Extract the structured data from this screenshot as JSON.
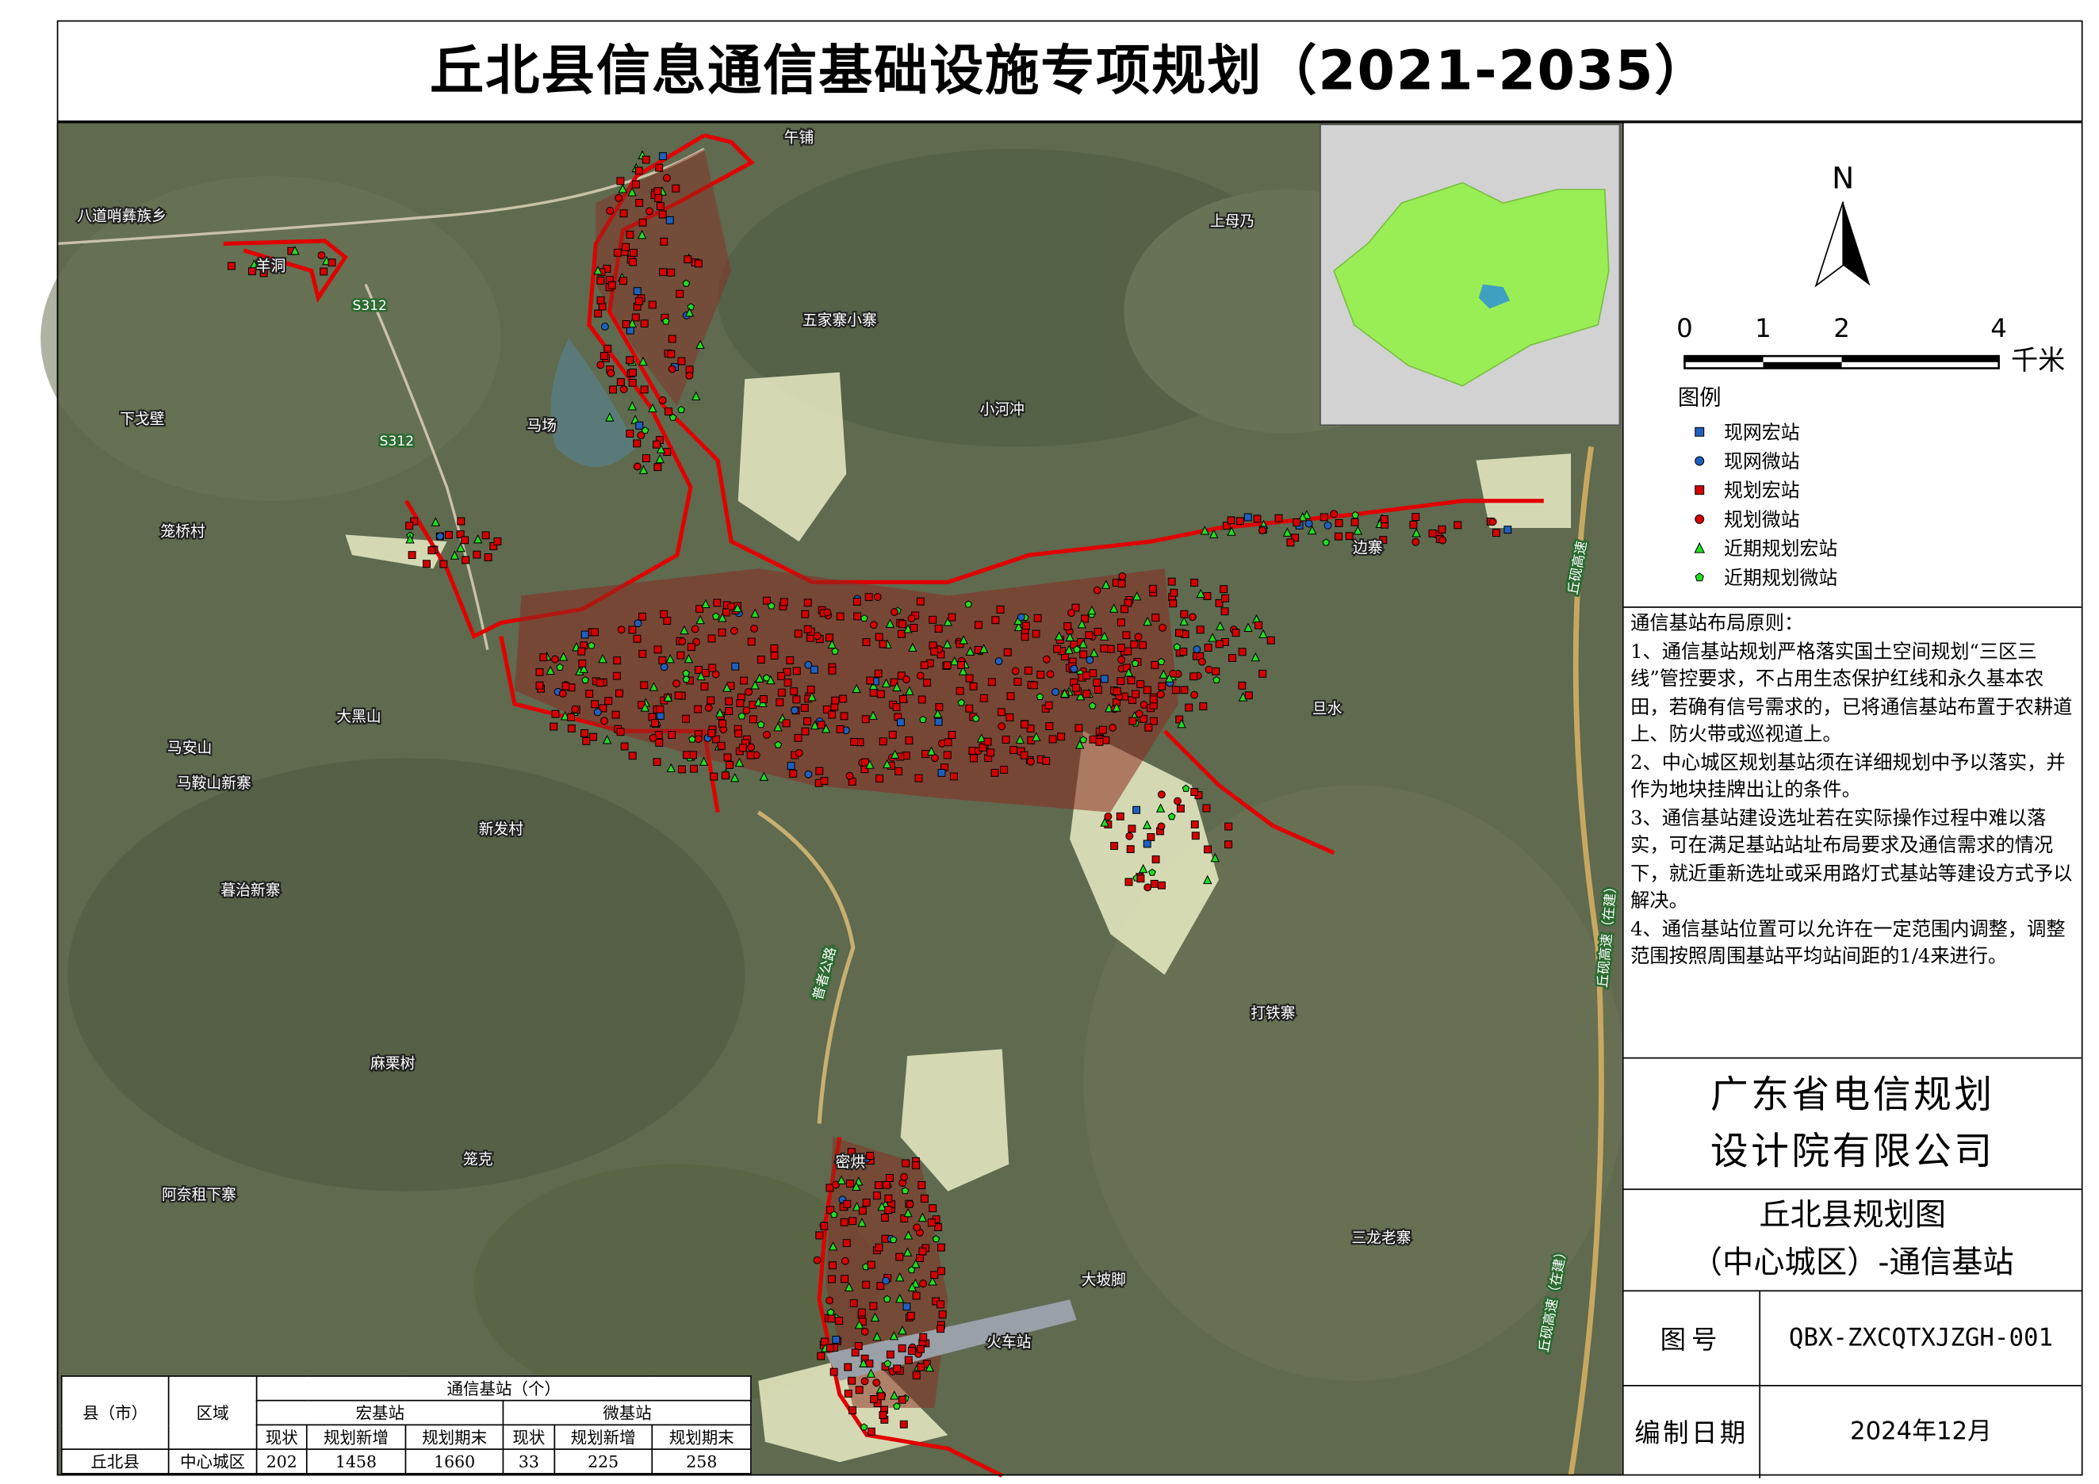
{
  "title": "丘北县信息通信基础设施专项规划（2021-2035）",
  "place_labels": [
    "午铺",
    "八道哨彝族乡",
    "羊洞",
    "上母乃",
    "五家寨小寨",
    "下戈壁",
    "马场",
    "小河冲",
    "笼桥村",
    "边寨",
    "大黑山",
    "马安山",
    "马鞍山新寨",
    "新发村",
    "旦水",
    "暮治新寨",
    "打铁寨",
    "麻栗树",
    "笼克",
    "密烘",
    "阿奈租下寨",
    "三龙老寨",
    "大坡脚",
    "火车站"
  ],
  "road_labels": [
    "S312",
    "S312",
    "普者公路",
    "丘砚高速",
    "丘砚高速（在建）",
    "丘砚高速（在建）"
  ],
  "north": "N",
  "scale_bar": {
    "labels": [
      "0",
      "1",
      "2",
      "4"
    ],
    "unit": "千米"
  },
  "legend": {
    "title": "图例",
    "items": [
      {
        "label": "现网宏站",
        "shape": "square",
        "color": "#1f5fbf"
      },
      {
        "label": "现网微站",
        "shape": "circle",
        "color": "#1f5fbf"
      },
      {
        "label": "规划宏站",
        "shape": "square",
        "color": "#d40000"
      },
      {
        "label": "规划微站",
        "shape": "circle",
        "color": "#d40000"
      },
      {
        "label": "近期规划宏站",
        "shape": "triangle",
        "color": "#22dd22"
      },
      {
        "label": "近期规划微站",
        "shape": "pentagon",
        "color": "#22dd22"
      }
    ]
  },
  "principles": {
    "heading": "通信基站布局原则：",
    "items": [
      "1、通信基站规划严格落实国土空间规划“三区三线”管控要求，不占用生态保护红线和永久基本农田，若确有信号需求的，已将通信基站布置于农耕道上、防火带或巡视道上。",
      "2、中心城区规划基站须在详细规划中予以落实，并作为地块挂牌出让的条件。",
      "3、通信基站建设选址若在实际操作过程中难以落实，可在满足基站站址布局要求及通信需求的情况下，就近重新选址或采用路灯式基站等建设方式予以解决。",
      "4、通信基站位置可以允许在一定范围内调整，调整范围按照周围基站平均站间距的1/4来进行。"
    ]
  },
  "company": [
    "广东省电信规划",
    "设计院有限公司"
  ],
  "drawing_title": [
    "丘北县规划图",
    "（中心城区）-通信基站"
  ],
  "drawing_no": {
    "label": "图号",
    "value": "QBX-ZXCQTXJZGH-001"
  },
  "date": {
    "label": "编制日期",
    "value": "2024年12月"
  },
  "table": {
    "county_header": "县（市）",
    "area_header": "区域",
    "group_header": "通信基站（个）",
    "macro_header": "宏基站",
    "micro_header": "微基站",
    "sub_headers": [
      "现状",
      "规划新增",
      "规划期末",
      "现状",
      "规划新增",
      "规划期末"
    ],
    "rows": [
      [
        "丘北县",
        "中心城区",
        202,
        1458,
        1660,
        33,
        225,
        258
      ]
    ]
  }
}
